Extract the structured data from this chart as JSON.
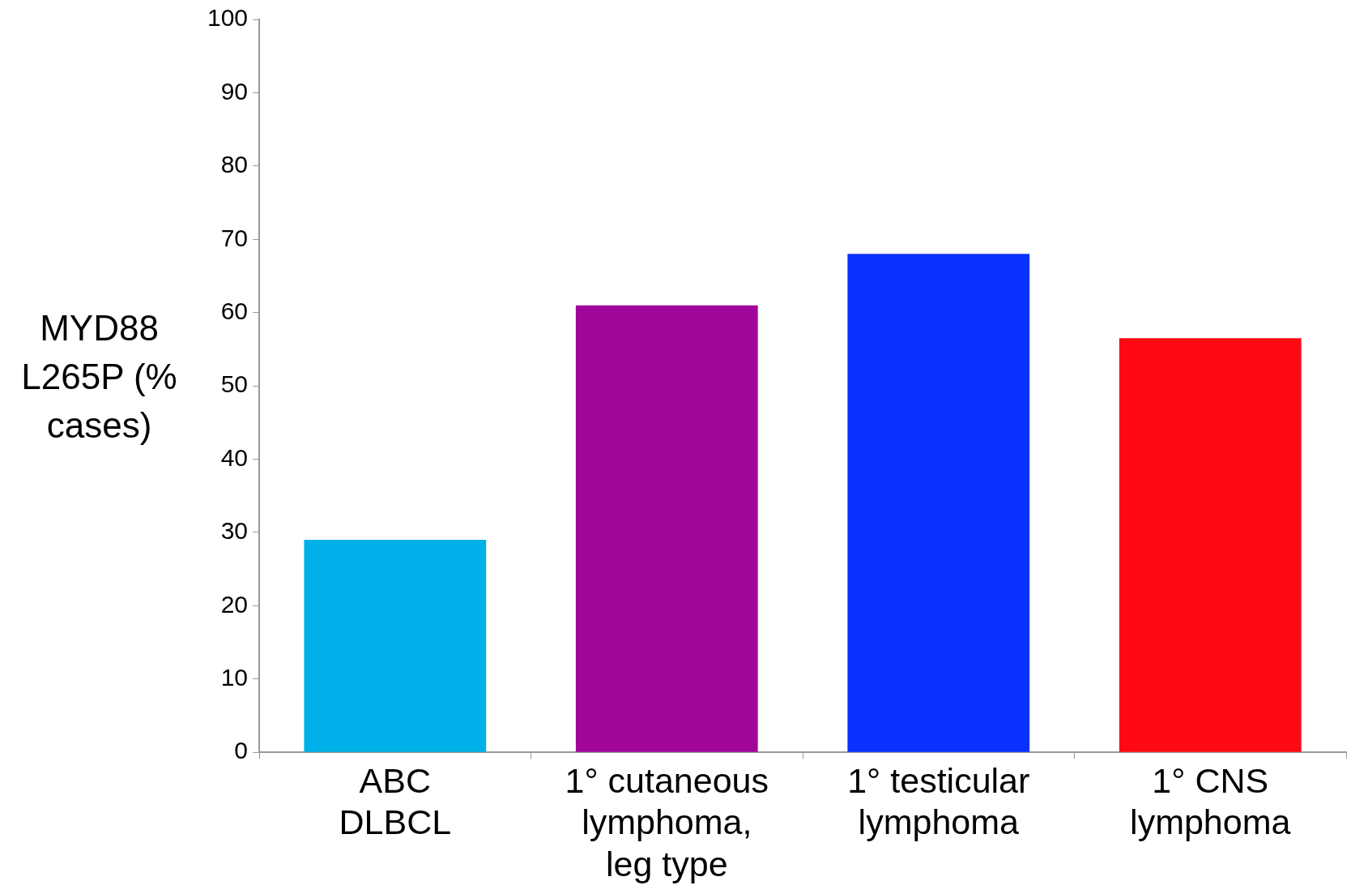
{
  "chart_data": {
    "type": "bar",
    "ylabel": "MYD88 L265P (% cases)",
    "categories": [
      "ABC\nDLBCL",
      "1° cutaneous\nlymphoma,\nleg type",
      "1° testicular\nlymphoma",
      "1° CNS\nlymphoma"
    ],
    "values": [
      29,
      61,
      68,
      56.5
    ],
    "colors": [
      "#00b0e8",
      "#a0069a",
      "#0a32ff",
      "#ff0a14"
    ],
    "ylim": [
      0,
      100
    ],
    "yticks": [
      0,
      10,
      20,
      30,
      40,
      50,
      60,
      70,
      80,
      90,
      100
    ],
    "grid": false,
    "legend": false
  }
}
